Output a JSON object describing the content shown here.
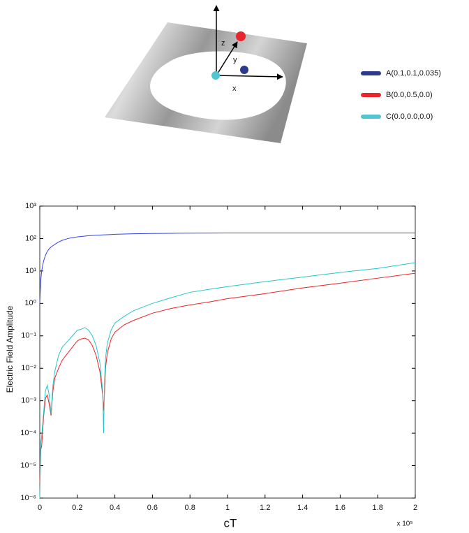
{
  "diagram": {
    "axis_labels": [
      "z",
      "y",
      "x"
    ]
  },
  "chart_data": {
    "type": "line",
    "x_label": "cT",
    "y_label": "Electric Field Amplitude",
    "x_multiplier_label": "x 10⁵",
    "log_y": true,
    "xlim": [
      0,
      2
    ],
    "xticks": [
      0,
      0.2,
      0.4,
      0.6,
      0.8,
      1,
      1.2,
      1.4,
      1.6,
      1.8,
      2
    ],
    "ylim": [
      1e-06,
      1000
    ],
    "yticks": [
      {
        "value": 1e-06,
        "label": "10⁻⁶"
      },
      {
        "value": 1e-05,
        "label": "10⁻⁵"
      },
      {
        "value": 0.0001,
        "label": "10⁻⁴"
      },
      {
        "value": 0.001,
        "label": "10⁻³"
      },
      {
        "value": 0.01,
        "label": "10⁻²"
      },
      {
        "value": 0.1,
        "label": "10⁻¹"
      },
      {
        "value": 1,
        "label": "10⁰"
      },
      {
        "value": 10,
        "label": "10¹"
      },
      {
        "value": 100,
        "label": "10²"
      },
      {
        "value": 1000,
        "label": "10³"
      }
    ],
    "x": [
      0,
      0.005,
      0.01,
      0.02,
      0.03,
      0.04,
      0.05,
      0.06,
      0.07,
      0.08,
      0.1,
      0.12,
      0.15,
      0.18,
      0.2,
      0.22,
      0.24,
      0.26,
      0.28,
      0.3,
      0.32,
      0.335,
      0.34,
      0.345,
      0.35,
      0.36,
      0.38,
      0.4,
      0.45,
      0.5,
      0.6,
      0.7,
      0.8,
      0.9,
      1.0,
      1.2,
      1.4,
      1.6,
      1.8,
      2.0
    ],
    "series": [
      {
        "name": "A(0.1,0.1,0.035)",
        "color": "#2b3a8f",
        "line_color": "#3344ee",
        "values": [
          1,
          5,
          10,
          20,
          30,
          40,
          48,
          55,
          60,
          66,
          78,
          88,
          100,
          108,
          112,
          116,
          119,
          122,
          124,
          126,
          128,
          129,
          130,
          130,
          130,
          131,
          133,
          135,
          138,
          140,
          143,
          145,
          146,
          147,
          148,
          148,
          148,
          148,
          148,
          148
        ]
      },
      {
        "name": "B(0.0,0.5,0.0)",
        "color": "#e8262b",
        "line_color": "#ee2222",
        "values": [
          3e-06,
          3e-05,
          4e-05,
          0.0003,
          0.0012,
          0.0015,
          0.0008,
          0.00035,
          0.002,
          0.005,
          0.01,
          0.018,
          0.03,
          0.05,
          0.07,
          0.08,
          0.085,
          0.075,
          0.05,
          0.025,
          0.008,
          0.0015,
          0.0005,
          0.002,
          0.01,
          0.03,
          0.08,
          0.13,
          0.22,
          0.3,
          0.5,
          0.7,
          0.9,
          1.1,
          1.4,
          2,
          3,
          4.2,
          6,
          8.5
        ]
      },
      {
        "name": "C(0.0,0.0,0.0)",
        "color": "#4fc6d0",
        "line_color": "#22c8c8",
        "values": [
          1e-06,
          5e-05,
          8e-05,
          0.0004,
          0.002,
          0.003,
          0.0015,
          0.0004,
          0.003,
          0.008,
          0.025,
          0.045,
          0.07,
          0.11,
          0.15,
          0.16,
          0.18,
          0.15,
          0.1,
          0.05,
          0.015,
          0.002,
          0.0001,
          0.004,
          0.02,
          0.06,
          0.15,
          0.25,
          0.4,
          0.6,
          1,
          1.5,
          2.2,
          2.7,
          3.3,
          4.7,
          6.5,
          9,
          12,
          18
        ]
      }
    ]
  }
}
